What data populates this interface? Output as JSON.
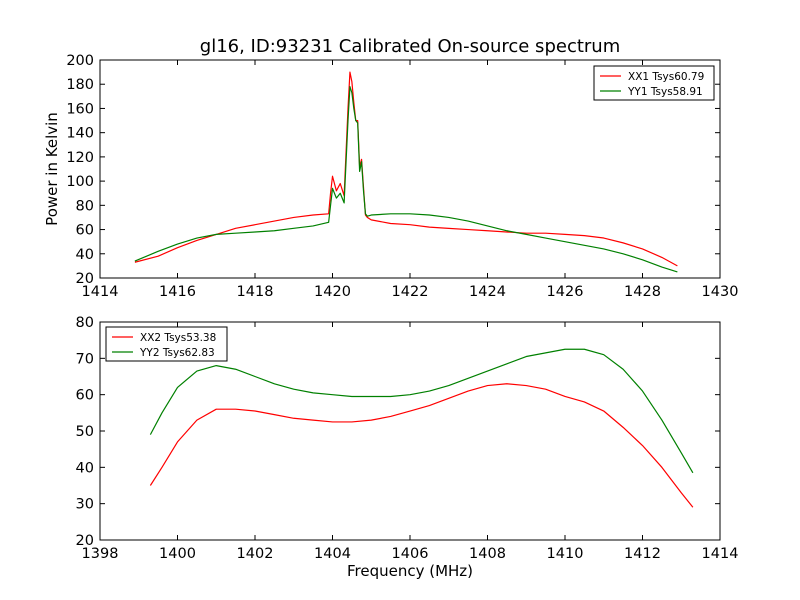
{
  "figure": {
    "title": "gl16, ID:93231 Calibrated On-source spectrum"
  },
  "chart_data": [
    {
      "type": "line",
      "title": "gl16, ID:93231 Calibrated On-source spectrum",
      "xlabel": "",
      "ylabel": "Power in Kelvin",
      "xlim": [
        1414,
        1430
      ],
      "ylim": [
        20,
        200
      ],
      "xticks": [
        1414,
        1416,
        1418,
        1420,
        1422,
        1424,
        1426,
        1428,
        1430
      ],
      "yticks": [
        20,
        40,
        60,
        80,
        100,
        120,
        140,
        160,
        180,
        200
      ],
      "xtick_labels": [
        "1414",
        "1416",
        "1418",
        "1420",
        "1422",
        "1424",
        "1426",
        "1428",
        "1430"
      ],
      "ytick_labels": [
        "20",
        "40",
        "60",
        "80",
        "100",
        "120",
        "140",
        "160",
        "180",
        "200"
      ],
      "legend_position": "top-right",
      "grid": false,
      "series": [
        {
          "name": "XX1 Tsys60.79",
          "color": "#ff0000",
          "x": [
            1414.9,
            1415.5,
            1416,
            1416.5,
            1417,
            1417.5,
            1418,
            1418.5,
            1419,
            1419.5,
            1419.9,
            1419.95,
            1420.0,
            1420.1,
            1420.2,
            1420.3,
            1420.4,
            1420.45,
            1420.5,
            1420.55,
            1420.6,
            1420.65,
            1420.7,
            1420.75,
            1420.8,
            1420.85,
            1420.9,
            1421.0,
            1421.5,
            1422,
            1422.5,
            1423,
            1423.5,
            1424,
            1424.5,
            1425,
            1425.5,
            1426,
            1426.5,
            1427,
            1427.5,
            1428,
            1428.5,
            1428.9
          ],
          "y": [
            33,
            38,
            45,
            51,
            56,
            61,
            64,
            67,
            70,
            72,
            73,
            90,
            104,
            92,
            98,
            88,
            160,
            190,
            182,
            165,
            150,
            150,
            112,
            118,
            95,
            72,
            70,
            68,
            65,
            64,
            62,
            61,
            60,
            59,
            58,
            57,
            57,
            56,
            55,
            53,
            49,
            44,
            37,
            30
          ]
        },
        {
          "name": "YY1 Tsys58.91",
          "color": "#008000",
          "x": [
            1414.9,
            1415.5,
            1416,
            1416.5,
            1417,
            1417.5,
            1418,
            1418.5,
            1419,
            1419.5,
            1419.9,
            1419.95,
            1420.0,
            1420.1,
            1420.2,
            1420.3,
            1420.4,
            1420.45,
            1420.5,
            1420.55,
            1420.6,
            1420.65,
            1420.7,
            1420.75,
            1420.8,
            1420.85,
            1420.9,
            1421.0,
            1421.5,
            1422,
            1422.5,
            1423,
            1423.5,
            1424,
            1424.5,
            1425,
            1425.5,
            1426,
            1426.5,
            1427,
            1427.5,
            1428,
            1428.5,
            1428.9
          ],
          "y": [
            34,
            42,
            48,
            53,
            56,
            57,
            58,
            59,
            61,
            63,
            66,
            80,
            94,
            86,
            90,
            82,
            150,
            178,
            173,
            160,
            150,
            148,
            108,
            116,
            92,
            73,
            71,
            72,
            73,
            73,
            72,
            70,
            67,
            63,
            59,
            56,
            53,
            50,
            47,
            44,
            40,
            35,
            29,
            25
          ]
        }
      ]
    },
    {
      "type": "line",
      "title": "",
      "xlabel": "Frequency (MHz)",
      "ylabel": "",
      "xlim": [
        1398,
        1414
      ],
      "ylim": [
        20,
        80
      ],
      "xticks": [
        1398,
        1400,
        1402,
        1404,
        1406,
        1408,
        1410,
        1412,
        1414
      ],
      "yticks": [
        20,
        30,
        40,
        50,
        60,
        70,
        80
      ],
      "xtick_labels": [
        "1398",
        "1400",
        "1402",
        "1404",
        "1406",
        "1408",
        "1410",
        "1412",
        "1414"
      ],
      "ytick_labels": [
        "20",
        "30",
        "40",
        "50",
        "60",
        "70",
        "80"
      ],
      "legend_position": "top-left",
      "grid": false,
      "series": [
        {
          "name": "XX2 Tsys53.38",
          "color": "#ff0000",
          "x": [
            1399.3,
            1399.6,
            1400,
            1400.5,
            1401,
            1401.5,
            1402,
            1402.5,
            1403,
            1403.5,
            1404,
            1404.5,
            1405,
            1405.5,
            1406,
            1406.5,
            1407,
            1407.5,
            1408,
            1408.5,
            1409,
            1409.5,
            1410,
            1410.5,
            1411,
            1411.5,
            1412,
            1412.5,
            1413,
            1413.3
          ],
          "y": [
            35,
            40,
            47,
            53,
            56,
            56,
            55.5,
            54.5,
            53.5,
            53,
            52.5,
            52.5,
            53,
            54,
            55.5,
            57,
            59,
            61,
            62.5,
            63,
            62.5,
            61.5,
            59.5,
            58,
            55.5,
            51,
            46,
            40,
            33,
            29
          ]
        },
        {
          "name": "YY2 Tsys62.83",
          "color": "#008000",
          "x": [
            1399.3,
            1399.6,
            1400,
            1400.5,
            1401,
            1401.5,
            1402,
            1402.5,
            1403,
            1403.5,
            1404,
            1404.5,
            1405,
            1405.5,
            1406,
            1406.5,
            1407,
            1407.5,
            1408,
            1408.5,
            1409,
            1409.5,
            1410,
            1410.5,
            1411,
            1411.5,
            1412,
            1412.5,
            1413,
            1413.3
          ],
          "y": [
            49,
            55,
            62,
            66.5,
            68,
            67,
            65,
            63,
            61.5,
            60.5,
            60,
            59.5,
            59.5,
            59.5,
            60,
            61,
            62.5,
            64.5,
            66.5,
            68.5,
            70.5,
            71.5,
            72.5,
            72.5,
            71,
            67,
            61,
            53,
            44,
            38.5
          ]
        }
      ]
    }
  ]
}
